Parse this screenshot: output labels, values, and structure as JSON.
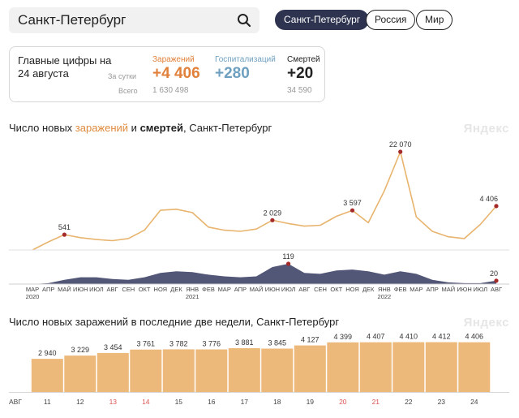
{
  "search": {
    "value": "Санкт-Петербург"
  },
  "filters": [
    {
      "label": "Санкт-Петербург",
      "active": true
    },
    {
      "label": "Россия",
      "active": false
    },
    {
      "label": "Мир",
      "active": false
    }
  ],
  "summary": {
    "title": "Главные цифры на 24 августа",
    "per_day_label": "За сутки",
    "total_label": "Всего",
    "infections": {
      "label": "Заражений",
      "daily": "+4 406",
      "total": "1 630 498",
      "color": "#e0803a"
    },
    "hospitalizations": {
      "label": "Госпитализаций",
      "daily": "+280",
      "color": "#6fa0c0"
    },
    "deaths": {
      "label": "Смертей",
      "daily": "+20",
      "total": "34 590",
      "color": "#222222"
    }
  },
  "main_chart": {
    "title_parts": {
      "prefix": "Число новых ",
      "infections": "заражений",
      "middle": " и ",
      "deaths": "смертей",
      "suffix": ", Санкт-Петербург"
    },
    "watermark": "Яндекс",
    "infection_color": "#e8b46e",
    "death_color": "#3f4468",
    "marker_color": "#a52a2a",
    "x_ticks": [
      {
        "label": "МАР",
        "year": "2020"
      },
      {
        "label": "АПР"
      },
      {
        "label": "МАЙ"
      },
      {
        "label": "ИЮН"
      },
      {
        "label": "ИЮЛ"
      },
      {
        "label": "АВГ"
      },
      {
        "label": "СЕН"
      },
      {
        "label": "ОКТ"
      },
      {
        "label": "НОЯ"
      },
      {
        "label": "ДЕК"
      },
      {
        "label": "ЯНВ",
        "year": "2021"
      },
      {
        "label": "ФЕВ"
      },
      {
        "label": "МАР"
      },
      {
        "label": "АПР"
      },
      {
        "label": "МАЙ"
      },
      {
        "label": "ИЮН"
      },
      {
        "label": "ИЮЛ"
      },
      {
        "label": "АВГ"
      },
      {
        "label": "СЕН"
      },
      {
        "label": "ОКТ"
      },
      {
        "label": "НОЯ"
      },
      {
        "label": "ДЕК"
      },
      {
        "label": "ЯНВ",
        "year": "2022"
      },
      {
        "label": "ФЕВ"
      },
      {
        "label": "МАР"
      },
      {
        "label": "АПР"
      },
      {
        "label": "МАЙ"
      },
      {
        "label": "ИЮН"
      },
      {
        "label": "ИЮЛ"
      },
      {
        "label": "АВГ"
      }
    ]
  },
  "bar_chart": {
    "title": "Число новых заражений в последние две недели, Санкт-Петербург",
    "watermark": "Яндекс",
    "bar_color": "#edb97a",
    "weekend_color": "#d9534f",
    "month_label": "АВГ"
  },
  "chart_data": [
    {
      "type": "area",
      "x_unit": "month",
      "x_range": [
        "2020-03",
        "2022-08"
      ],
      "series": [
        {
          "name": "заражений",
          "points": [
            [
              "2020-03",
              0
            ],
            [
              "2020-04",
              150
            ],
            [
              "2020-05",
              541
            ],
            [
              "2020-06",
              350
            ],
            [
              "2020-07",
              250
            ],
            [
              "2020-08",
              200
            ],
            [
              "2020-09",
              300
            ],
            [
              "2020-10",
              900
            ],
            [
              "2020-11",
              3600
            ],
            [
              "2020-12",
              3800
            ],
            [
              "2021-01",
              3200
            ],
            [
              "2021-02",
              1200
            ],
            [
              "2021-03",
              900
            ],
            [
              "2021-04",
              800
            ],
            [
              "2021-05",
              1000
            ],
            [
              "2021-06",
              2029
            ],
            [
              "2021-07",
              1600
            ],
            [
              "2021-08",
              1300
            ],
            [
              "2021-09",
              1400
            ],
            [
              "2021-10",
              2600
            ],
            [
              "2021-11",
              3597
            ],
            [
              "2021-12",
              1700
            ],
            [
              "2022-01",
              8000
            ],
            [
              "2022-02",
              22070
            ],
            [
              "2022-03",
              2500
            ],
            [
              "2022-04",
              800
            ],
            [
              "2022-05",
              400
            ],
            [
              "2022-06",
              300
            ],
            [
              "2022-07",
              1500
            ],
            [
              "2022-08",
              4406
            ]
          ]
        },
        {
          "name": "смертей",
          "points": [
            [
              "2020-03",
              0
            ],
            [
              "2020-04",
              5
            ],
            [
              "2020-05",
              25
            ],
            [
              "2020-06",
              40
            ],
            [
              "2020-07",
              40
            ],
            [
              "2020-08",
              30
            ],
            [
              "2020-09",
              25
            ],
            [
              "2020-10",
              40
            ],
            [
              "2020-11",
              65
            ],
            [
              "2020-12",
              75
            ],
            [
              "2021-01",
              70
            ],
            [
              "2021-02",
              55
            ],
            [
              "2021-03",
              45
            ],
            [
              "2021-04",
              40
            ],
            [
              "2021-05",
              45
            ],
            [
              "2021-06",
              100
            ],
            [
              "2021-07",
              119
            ],
            [
              "2021-08",
              65
            ],
            [
              "2021-09",
              60
            ],
            [
              "2021-10",
              80
            ],
            [
              "2021-11",
              85
            ],
            [
              "2021-12",
              75
            ],
            [
              "2022-01",
              55
            ],
            [
              "2022-02",
              75
            ],
            [
              "2022-03",
              60
            ],
            [
              "2022-04",
              25
            ],
            [
              "2022-05",
              10
            ],
            [
              "2022-06",
              5
            ],
            [
              "2022-07",
              5
            ],
            [
              "2022-08",
              20
            ]
          ]
        }
      ],
      "annotations": [
        {
          "x": "2020-05",
          "series": "заражений",
          "label": "541"
        },
        {
          "x": "2021-06",
          "series": "заражений",
          "label": "2 029"
        },
        {
          "x": "2021-11",
          "series": "заражений",
          "label": "3 597"
        },
        {
          "x": "2022-02",
          "series": "заражений",
          "label": "22 070"
        },
        {
          "x": "2022-08",
          "series": "заражений",
          "label": "4 406"
        },
        {
          "x": "2021-07",
          "series": "смертей",
          "label": "119"
        },
        {
          "x": "2022-08",
          "series": "смертей",
          "label": "20"
        }
      ]
    },
    {
      "type": "bar",
      "categories": [
        "11",
        "12",
        "13",
        "14",
        "15",
        "16",
        "17",
        "18",
        "19",
        "20",
        "21",
        "22",
        "23",
        "24"
      ],
      "weekend": [
        false,
        false,
        true,
        true,
        false,
        false,
        false,
        false,
        false,
        true,
        true,
        false,
        false,
        false
      ],
      "values": [
        2940,
        3229,
        3454,
        3761,
        3782,
        3776,
        3881,
        3845,
        4127,
        4399,
        4407,
        4410,
        4412,
        4406
      ],
      "value_labels": [
        "2 940",
        "3 229",
        "3 454",
        "3 761",
        "3 782",
        "3 776",
        "3 881",
        "3 845",
        "4 127",
        "4 399",
        "4 407",
        "4 410",
        "4 412",
        "4 406"
      ],
      "ylim": [
        0,
        4600
      ]
    }
  ]
}
